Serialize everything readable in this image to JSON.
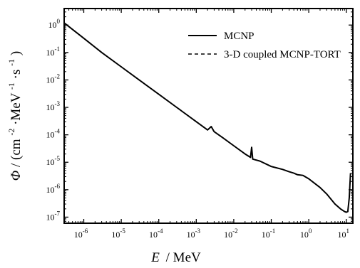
{
  "chart_data": {
    "type": "line",
    "xscale": "log",
    "yscale": "log",
    "xlim": [
      3e-07,
      15
    ],
    "ylim": [
      6e-08,
      4
    ],
    "grid": false,
    "legend_position": "top-right",
    "xlabel": {
      "symbol": "E",
      "unit": "/ MeV"
    },
    "ylabel": {
      "symbol": "Φ",
      "unit": "/ (cm",
      "unit_exp1": "-2",
      "unit_mid": "·MeV",
      "unit_exp2": "-1",
      "unit_mid2": "·s",
      "unit_exp3": "-1",
      "unit_end": ")"
    },
    "xticks": [
      {
        "value": 1e-06,
        "base": "10",
        "exp": "-6"
      },
      {
        "value": 1e-05,
        "base": "10",
        "exp": "-5"
      },
      {
        "value": 0.0001,
        "base": "10",
        "exp": "-4"
      },
      {
        "value": 0.001,
        "base": "10",
        "exp": "-3"
      },
      {
        "value": 0.01,
        "base": "10",
        "exp": "-2"
      },
      {
        "value": 0.1,
        "base": "10",
        "exp": "-1"
      },
      {
        "value": 1,
        "base": "10",
        "exp": "0"
      },
      {
        "value": 10,
        "base": "10",
        "exp": "1"
      }
    ],
    "yticks": [
      {
        "value": 1,
        "base": "10",
        "exp": "0"
      },
      {
        "value": 0.1,
        "base": "10",
        "exp": "-1"
      },
      {
        "value": 0.01,
        "base": "10",
        "exp": "-2"
      },
      {
        "value": 0.001,
        "base": "10",
        "exp": "-3"
      },
      {
        "value": 0.0001,
        "base": "10",
        "exp": "-4"
      },
      {
        "value": 1e-05,
        "base": "10",
        "exp": "-5"
      },
      {
        "value": 1e-06,
        "base": "10",
        "exp": "-6"
      },
      {
        "value": 1e-07,
        "base": "10",
        "exp": "-7"
      }
    ],
    "series": [
      {
        "name": "MCNP",
        "style": "solid",
        "color": "#000000",
        "x": [
          3e-07,
          1e-06,
          3e-06,
          1e-05,
          3e-05,
          0.0001,
          0.0003,
          0.001,
          0.002,
          0.0025,
          0.003,
          0.005,
          0.01,
          0.02,
          0.028,
          0.03,
          0.032,
          0.05,
          0.1,
          0.2,
          0.3,
          0.4,
          0.5,
          0.7,
          1,
          2,
          3,
          5,
          7,
          9,
          10,
          11,
          12,
          13
        ],
        "y": [
          1.2,
          0.33,
          0.1,
          0.03,
          0.01,
          0.003,
          0.001,
          0.0003,
          0.00015,
          0.0002,
          0.00013,
          8e-05,
          4e-05,
          2e-05,
          1.5e-05,
          3.5e-05,
          1.3e-05,
          1.1e-05,
          7e-06,
          5.5e-06,
          4.5e-06,
          4e-06,
          3.5e-06,
          3.3e-06,
          2.5e-06,
          1.2e-06,
          7e-07,
          3e-07,
          2e-07,
          1.6e-07,
          1.5e-07,
          1.6e-07,
          5e-07,
          4e-06
        ]
      },
      {
        "name": "3-D coupled MCNP-TORT",
        "style": "dashed",
        "color": "#000000",
        "x": [
          3e-07,
          1e-06,
          3e-06,
          1e-05,
          3e-05,
          0.0001,
          0.0003,
          0.001,
          0.002,
          0.0025,
          0.003,
          0.005,
          0.01,
          0.02,
          0.028,
          0.03,
          0.032,
          0.05,
          0.1,
          0.2,
          0.3,
          0.4,
          0.5,
          0.7,
          1,
          2,
          3,
          5,
          7,
          9,
          10,
          11,
          12,
          13
        ],
        "y": [
          1.2,
          0.33,
          0.1,
          0.03,
          0.01,
          0.003,
          0.001,
          0.0003,
          0.00015,
          0.0002,
          0.00013,
          8e-05,
          4e-05,
          2e-05,
          1.5e-05,
          3.5e-05,
          1.3e-05,
          1.1e-05,
          7e-06,
          5.5e-06,
          4.5e-06,
          4e-06,
          3.5e-06,
          3.3e-06,
          2.5e-06,
          1.2e-06,
          7e-07,
          3e-07,
          2e-07,
          1.6e-07,
          1.5e-07,
          1.6e-07,
          5e-07,
          4e-06
        ]
      }
    ]
  }
}
